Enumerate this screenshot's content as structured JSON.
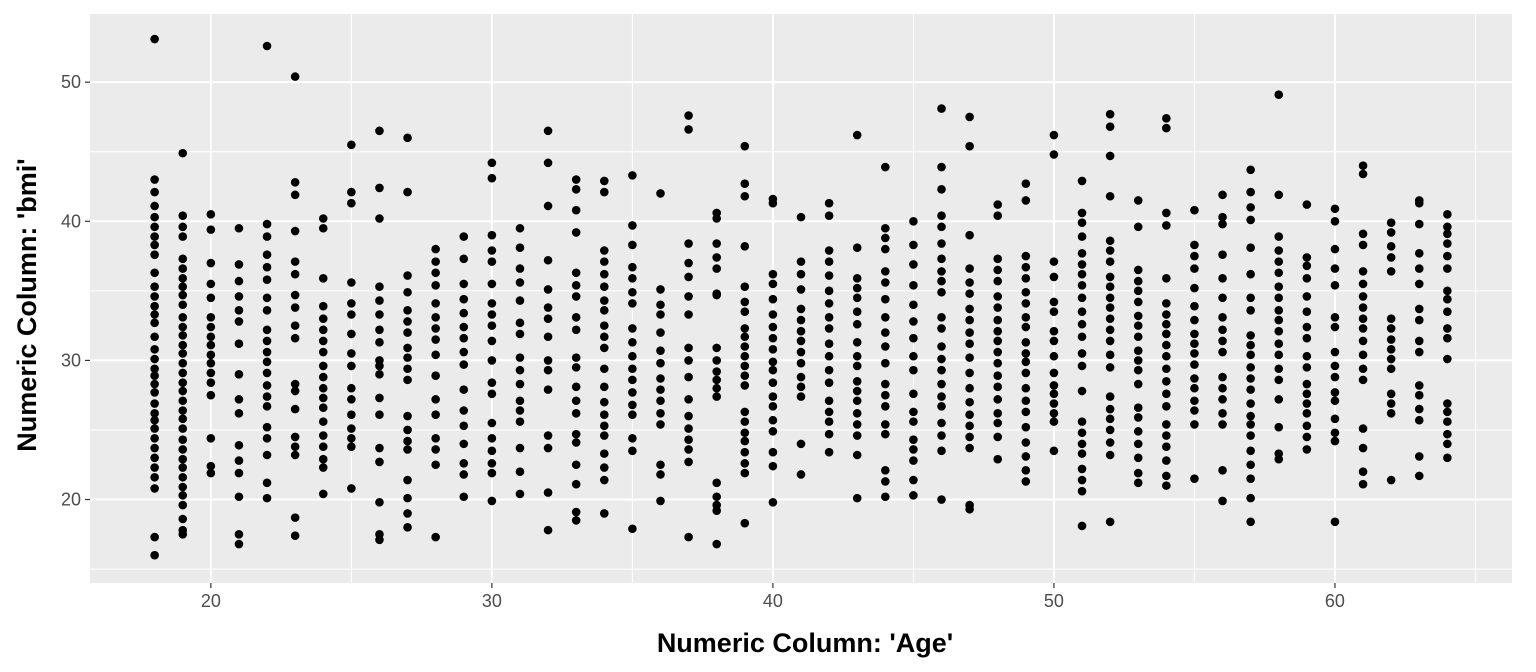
{
  "chart_data": {
    "type": "scatter",
    "title": "",
    "xlabel": "Numeric Column: 'Age'",
    "ylabel": "Numeric Column: 'bmi'",
    "xlim": [
      15.7,
      66.3
    ],
    "ylim": [
      14.0,
      54.9
    ],
    "x_ticks": [
      20,
      30,
      40,
      50,
      60
    ],
    "y_ticks": [
      20,
      30,
      40,
      50
    ],
    "x_tick_labels": [
      "20",
      "30",
      "40",
      "50",
      "60"
    ],
    "y_tick_labels": [
      "20",
      "30",
      "40",
      "50"
    ],
    "grid": true,
    "legend": "none",
    "colors": {
      "panel": "#ebebeb",
      "grid": "#ffffff",
      "point": "#000000",
      "tick_text": "#4d4d4d"
    },
    "points": [
      {
        "age": 18,
        "bmi": [
          53.1,
          43.0,
          42.1,
          41.1,
          40.3,
          39.6,
          38.9,
          38.3,
          37.6,
          36.3,
          35.3,
          34.6,
          33.9,
          33.3,
          32.7,
          31.7,
          30.8,
          30.1,
          29.4,
          28.9,
          28.3,
          27.7,
          26.9,
          26.2,
          25.7,
          25.1,
          24.4,
          23.7,
          23.0,
          22.3,
          21.6,
          20.8,
          17.3,
          16.0
        ]
      },
      {
        "age": 19,
        "bmi": [
          44.9,
          40.4,
          39.6,
          38.9,
          37.3,
          36.6,
          35.9,
          35.3,
          34.7,
          34.0,
          33.1,
          32.4,
          31.8,
          31.1,
          30.5,
          29.8,
          29.1,
          28.4,
          27.8,
          27.1,
          26.4,
          25.8,
          25.1,
          24.3,
          23.6,
          22.9,
          22.3,
          21.6,
          20.9,
          20.3,
          19.6,
          18.6,
          17.8,
          17.5
        ]
      },
      {
        "age": 20,
        "bmi": [
          40.5,
          39.4,
          37.0,
          35.5,
          34.5,
          33.1,
          32.4,
          31.7,
          31.1,
          30.4,
          29.8,
          29.1,
          28.4,
          27.5,
          24.4,
          22.4,
          21.9
        ]
      },
      {
        "age": 21,
        "bmi": [
          39.5,
          36.9,
          35.7,
          34.6,
          33.6,
          32.8,
          31.2,
          29.0,
          27.2,
          26.2,
          23.9,
          22.8,
          21.9,
          20.2,
          17.5,
          16.8
        ]
      },
      {
        "age": 22,
        "bmi": [
          52.6,
          39.8,
          38.9,
          37.6,
          36.7,
          35.8,
          34.5,
          33.6,
          32.2,
          31.4,
          30.6,
          29.9,
          29.1,
          28.2,
          27.4,
          26.7,
          25.2,
          24.4,
          23.2,
          21.2,
          20.1
        ]
      },
      {
        "age": 23,
        "bmi": [
          50.4,
          42.8,
          41.9,
          39.3,
          37.1,
          36.2,
          34.7,
          33.8,
          32.5,
          31.6,
          28.3,
          27.8,
          26.5,
          24.5,
          23.8,
          23.2,
          18.7,
          17.4
        ]
      },
      {
        "age": 24,
        "bmi": [
          40.2,
          39.5,
          35.9,
          33.9,
          33.0,
          32.2,
          31.4,
          30.6,
          29.6,
          28.8,
          28.0,
          27.3,
          26.6,
          25.6,
          24.6,
          23.8,
          22.9,
          22.3,
          20.4
        ]
      },
      {
        "age": 25,
        "bmi": [
          45.5,
          42.1,
          41.3,
          35.6,
          34.1,
          33.3,
          31.9,
          30.5,
          29.6,
          28.0,
          27.2,
          26.1,
          25.1,
          24.4,
          23.8,
          20.8
        ]
      },
      {
        "age": 26,
        "bmi": [
          46.5,
          42.4,
          40.2,
          35.3,
          34.3,
          33.3,
          32.2,
          31.3,
          30.0,
          29.6,
          29.0,
          27.3,
          26.1,
          23.7,
          22.7,
          19.8,
          17.5,
          17.1
        ]
      },
      {
        "age": 27,
        "bmi": [
          46.0,
          42.1,
          36.1,
          34.9,
          33.6,
          32.8,
          32.0,
          30.9,
          30.2,
          29.4,
          28.6,
          26.0,
          25.0,
          24.2,
          23.6,
          21.4,
          20.1,
          19.0,
          18.0
        ]
      },
      {
        "age": 28,
        "bmi": [
          38.0,
          37.1,
          36.3,
          35.4,
          34.1,
          33.1,
          32.3,
          31.5,
          30.4,
          28.9,
          27.2,
          26.1,
          24.4,
          23.6,
          22.5,
          17.3
        ]
      },
      {
        "age": 29,
        "bmi": [
          38.9,
          37.3,
          35.5,
          34.4,
          33.4,
          32.4,
          31.6,
          30.6,
          29.7,
          27.9,
          26.4,
          25.3,
          24.0,
          22.6,
          21.8,
          20.2
        ]
      },
      {
        "age": 30,
        "bmi": [
          44.2,
          43.1,
          39.0,
          37.9,
          37.1,
          35.5,
          34.1,
          33.3,
          32.5,
          31.4,
          30.0,
          28.4,
          27.6,
          25.5,
          24.4,
          23.5,
          22.6,
          21.9,
          19.9
        ]
      },
      {
        "age": 31,
        "bmi": [
          39.5,
          38.1,
          36.6,
          35.6,
          34.3,
          32.7,
          31.9,
          30.2,
          29.3,
          28.3,
          27.1,
          26.4,
          25.6,
          23.7,
          22.0,
          20.4
        ]
      },
      {
        "age": 32,
        "bmi": [
          46.5,
          44.2,
          41.1,
          37.2,
          35.1,
          33.8,
          33.0,
          31.7,
          30.0,
          29.3,
          27.9,
          24.6,
          23.7,
          20.5,
          17.8
        ]
      },
      {
        "age": 33,
        "bmi": [
          43.0,
          42.3,
          40.8,
          39.2,
          36.3,
          35.4,
          34.6,
          33.1,
          32.2,
          30.2,
          29.5,
          28.1,
          27.1,
          26.2,
          24.7,
          24.1,
          22.5,
          21.1,
          19.1,
          18.5
        ]
      },
      {
        "age": 34,
        "bmi": [
          42.9,
          42.1,
          37.9,
          37.1,
          36.2,
          35.3,
          34.3,
          33.6,
          32.5,
          31.7,
          30.9,
          29.4,
          28.1,
          27.0,
          26.1,
          25.3,
          24.6,
          23.3,
          22.3,
          21.4,
          19.0
        ]
      },
      {
        "age": 35,
        "bmi": [
          43.3,
          39.7,
          38.3,
          36.7,
          35.9,
          34.9,
          34.1,
          32.3,
          31.3,
          30.3,
          29.4,
          28.6,
          27.7,
          26.8,
          26.1,
          24.4,
          23.5,
          17.9
        ]
      },
      {
        "age": 36,
        "bmi": [
          42.0,
          35.1,
          34.0,
          33.3,
          32.0,
          30.7,
          29.8,
          28.7,
          27.9,
          27.1,
          26.2,
          25.4,
          22.5,
          21.8,
          19.9
        ]
      },
      {
        "age": 37,
        "bmi": [
          47.6,
          46.6,
          38.4,
          37.0,
          36.0,
          34.6,
          33.3,
          30.9,
          30.0,
          28.8,
          27.2,
          26.0,
          25.1,
          24.3,
          23.6,
          22.7,
          17.3
        ]
      },
      {
        "age": 38,
        "bmi": [
          40.6,
          40.2,
          38.4,
          37.4,
          36.6,
          34.8,
          34.7,
          30.9,
          30.0,
          29.2,
          28.6,
          28.0,
          27.4,
          21.2,
          20.2,
          19.6,
          19.2,
          16.8
        ]
      },
      {
        "age": 39,
        "bmi": [
          45.4,
          42.7,
          41.8,
          38.2,
          35.3,
          34.2,
          33.5,
          32.3,
          31.7,
          31.0,
          30.3,
          29.6,
          28.9,
          28.2,
          26.3,
          25.6,
          24.8,
          24.2,
          23.4,
          22.6,
          21.9,
          18.3
        ]
      },
      {
        "age": 40,
        "bmi": [
          41.6,
          41.3,
          36.2,
          35.5,
          34.4,
          33.3,
          32.4,
          31.6,
          30.8,
          29.9,
          29.3,
          28.4,
          27.4,
          26.7,
          25.7,
          24.9,
          23.4,
          22.4,
          19.8
        ]
      },
      {
        "age": 41,
        "bmi": [
          40.3,
          37.1,
          36.2,
          35.1,
          33.7,
          32.9,
          32.1,
          31.4,
          30.6,
          29.8,
          28.8,
          28.1,
          27.4,
          24.0,
          21.8
        ]
      },
      {
        "age": 42,
        "bmi": [
          41.3,
          40.4,
          37.9,
          37.1,
          36.1,
          35.0,
          34.1,
          33.1,
          32.3,
          31.2,
          30.3,
          29.3,
          28.4,
          27.1,
          26.3,
          25.6,
          24.7,
          23.4
        ]
      },
      {
        "age": 43,
        "bmi": [
          46.2,
          38.1,
          35.9,
          35.2,
          34.5,
          33.5,
          32.6,
          31.3,
          30.3,
          29.6,
          28.5,
          27.8,
          27.1,
          26.2,
          25.4,
          24.6,
          23.2,
          20.1
        ]
      },
      {
        "age": 44,
        "bmi": [
          43.9,
          39.5,
          38.8,
          38.0,
          36.4,
          35.6,
          34.4,
          33.1,
          32.0,
          31.0,
          29.8,
          28.3,
          27.5,
          26.7,
          25.4,
          24.7,
          22.1,
          21.3,
          20.2
        ]
      },
      {
        "age": 45,
        "bmi": [
          40.0,
          38.3,
          36.9,
          35.4,
          34.0,
          32.8,
          31.6,
          30.3,
          29.3,
          27.6,
          26.3,
          25.6,
          24.3,
          23.6,
          22.8,
          21.4,
          20.3
        ]
      },
      {
        "age": 46,
        "bmi": [
          48.1,
          43.9,
          42.3,
          40.4,
          39.6,
          38.4,
          37.3,
          36.4,
          35.7,
          34.9,
          33.1,
          32.3,
          31.0,
          30.1,
          29.3,
          28.3,
          27.4,
          26.7,
          25.5,
          24.6,
          23.5,
          20.0
        ]
      },
      {
        "age": 47,
        "bmi": [
          47.5,
          45.4,
          39.0,
          36.6,
          35.6,
          34.8,
          33.7,
          32.9,
          32.0,
          31.2,
          30.2,
          29.1,
          28.0,
          27.0,
          26.1,
          25.3,
          24.5,
          23.7,
          19.6,
          19.3
        ]
      },
      {
        "age": 48,
        "bmi": [
          41.2,
          40.4,
          37.3,
          36.5,
          35.7,
          34.6,
          33.8,
          32.9,
          32.1,
          31.4,
          30.6,
          29.8,
          28.9,
          28.1,
          27.2,
          26.2,
          25.5,
          24.5,
          22.9
        ]
      },
      {
        "age": 49,
        "bmi": [
          42.7,
          41.5,
          37.5,
          36.7,
          35.9,
          34.9,
          34.1,
          33.1,
          32.4,
          31.3,
          30.5,
          29.9,
          29.1,
          28.0,
          27.1,
          26.3,
          25.2,
          24.1,
          23.1,
          22.1,
          21.3
        ]
      },
      {
        "age": 50,
        "bmi": [
          46.2,
          44.8,
          37.1,
          36.0,
          34.2,
          33.5,
          32.1,
          31.4,
          30.3,
          29.1,
          28.2,
          27.6,
          26.9,
          26.2,
          25.6,
          23.5
        ]
      },
      {
        "age": 51,
        "bmi": [
          42.9,
          40.6,
          39.9,
          38.9,
          37.7,
          36.9,
          36.2,
          35.4,
          34.5,
          33.5,
          32.6,
          31.7,
          30.5,
          29.6,
          27.8,
          25.6,
          24.8,
          24.0,
          23.3,
          22.2,
          21.4,
          20.6,
          18.1
        ]
      },
      {
        "age": 52,
        "bmi": [
          47.7,
          46.8,
          44.7,
          41.8,
          38.6,
          37.9,
          37.1,
          36.0,
          35.3,
          34.5,
          33.8,
          33.0,
          32.2,
          31.4,
          30.4,
          29.5,
          27.4,
          26.5,
          25.8,
          25.0,
          24.1,
          23.2,
          18.4
        ]
      },
      {
        "age": 53,
        "bmi": [
          41.5,
          39.6,
          36.5,
          35.7,
          35.0,
          34.2,
          33.2,
          32.5,
          31.7,
          30.7,
          30.0,
          29.3,
          28.3,
          26.6,
          25.9,
          24.9,
          24.0,
          23.0,
          21.9,
          21.2
        ]
      },
      {
        "age": 54,
        "bmi": [
          47.4,
          46.7,
          40.6,
          39.7,
          35.9,
          34.1,
          33.3,
          32.6,
          31.9,
          31.1,
          30.3,
          29.4,
          28.5,
          27.6,
          26.7,
          25.4,
          24.6,
          23.8,
          22.8,
          21.7,
          21.0
        ]
      },
      {
        "age": 55,
        "bmi": [
          40.8,
          38.3,
          37.5,
          36.6,
          35.2,
          33.9,
          32.9,
          31.9,
          31.2,
          30.5,
          29.7,
          28.7,
          28.0,
          27.1,
          26.4,
          25.4,
          21.5
        ]
      },
      {
        "age": 56,
        "bmi": [
          41.9,
          40.3,
          39.8,
          37.6,
          35.9,
          34.5,
          33.1,
          32.2,
          31.4,
          30.6,
          28.8,
          28.0,
          27.2,
          26.2,
          25.4,
          22.1,
          19.9
        ]
      },
      {
        "age": 57,
        "bmi": [
          43.7,
          42.1,
          41.0,
          40.1,
          38.1,
          36.2,
          34.5,
          33.6,
          31.8,
          31.1,
          30.4,
          29.5,
          28.7,
          27.9,
          26.9,
          26.0,
          25.4,
          24.6,
          23.5,
          22.5,
          21.5,
          20.1,
          18.4
        ]
      },
      {
        "age": 58,
        "bmi": [
          49.1,
          41.9,
          38.9,
          37.9,
          37.1,
          36.3,
          35.3,
          34.5,
          33.6,
          32.9,
          32.1,
          31.2,
          30.4,
          29.4,
          28.6,
          27.2,
          25.2,
          23.3,
          22.9
        ]
      },
      {
        "age": 59,
        "bmi": [
          41.2,
          37.4,
          36.8,
          35.9,
          34.6,
          33.5,
          32.4,
          31.6,
          30.3,
          29.5,
          28.3,
          27.6,
          26.9,
          26.2,
          25.3,
          24.5,
          23.6
        ]
      },
      {
        "age": 60,
        "bmi": [
          40.9,
          40.0,
          38.0,
          36.6,
          35.4,
          33.1,
          32.4,
          30.6,
          29.6,
          28.8,
          27.7,
          27.1,
          25.8,
          24.8,
          24.2,
          18.4
        ]
      },
      {
        "age": 61,
        "bmi": [
          44.0,
          43.4,
          39.1,
          38.3,
          36.4,
          35.5,
          34.6,
          33.8,
          33.0,
          32.3,
          31.4,
          30.4,
          29.4,
          28.6,
          25.1,
          23.7,
          22.0,
          21.1
        ]
      },
      {
        "age": 62,
        "bmi": [
          39.9,
          39.2,
          38.2,
          37.4,
          36.4,
          33.0,
          32.3,
          31.5,
          30.8,
          30.1,
          29.4,
          27.6,
          26.9,
          26.2,
          21.4
        ]
      },
      {
        "age": 63,
        "bmi": [
          41.5,
          41.3,
          39.8,
          37.7,
          36.6,
          35.5,
          33.7,
          32.9,
          31.4,
          30.6,
          28.2,
          27.5,
          26.5,
          25.7,
          23.1,
          21.7
        ]
      },
      {
        "age": 64,
        "bmi": [
          40.5,
          39.6,
          39.1,
          38.4,
          37.5,
          36.6,
          35.0,
          34.4,
          33.5,
          32.3,
          31.6,
          30.1,
          26.9,
          26.3,
          25.6,
          24.7,
          24.0,
          23.0
        ]
      }
    ]
  }
}
